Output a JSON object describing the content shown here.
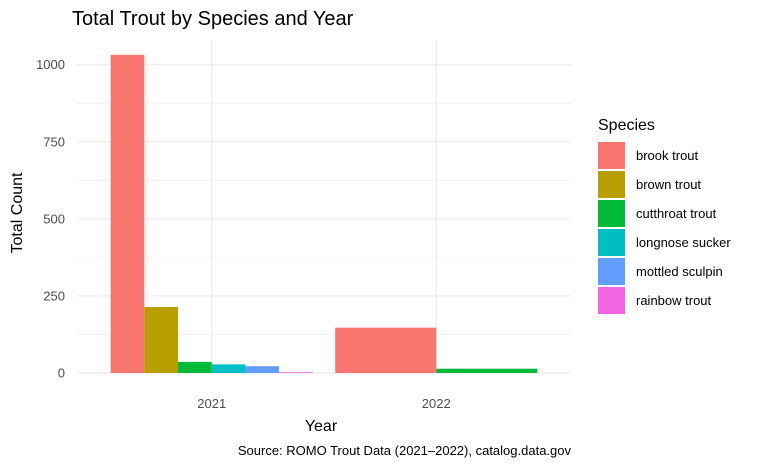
{
  "chart_data": {
    "type": "bar",
    "title": "Total Trout by Species and Year",
    "xlabel": "Year",
    "ylabel": "Total Count",
    "caption": "Source: ROMO Trout Data (2021–2022), catalog.data.gov",
    "categories": [
      "2021",
      "2022"
    ],
    "ylim": [
      0,
      1080
    ],
    "yticks": [
      0,
      250,
      500,
      750,
      1000
    ],
    "grid": true,
    "legend": {
      "title": "Species",
      "position": "right"
    },
    "series": [
      {
        "name": "brook trout",
        "color": "#F8766D",
        "values": [
          1032,
          147
        ]
      },
      {
        "name": "brown trout",
        "color": "#B79F00",
        "values": [
          214,
          null
        ]
      },
      {
        "name": "cutthroat trout",
        "color": "#00BA38",
        "values": [
          36,
          14
        ]
      },
      {
        "name": "longnose sucker",
        "color": "#00BFC4",
        "values": [
          28,
          null
        ]
      },
      {
        "name": "mottled sculpin",
        "color": "#619CFF",
        "values": [
          22,
          null
        ]
      },
      {
        "name": "rainbow trout",
        "color": "#F564E3",
        "values": [
          2,
          null
        ]
      }
    ]
  }
}
